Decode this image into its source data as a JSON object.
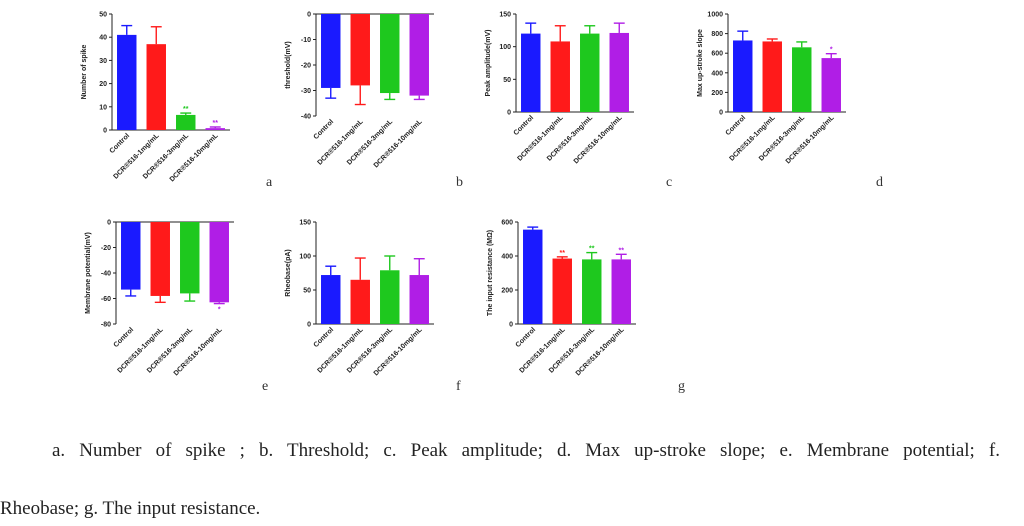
{
  "colors": {
    "control": "#1a1aff",
    "low": "#ff1a1a",
    "mid": "#1ec81e",
    "high": "#b01ee6",
    "axis": "#222222"
  },
  "chart_data": [
    {
      "type": "bar",
      "label": "a",
      "ylabel": "Number of spike",
      "ylim": [
        0,
        50
      ],
      "yticks": [
        0,
        10,
        20,
        30,
        40,
        50
      ],
      "categories": [
        "Control",
        "DCR®516-1mg/mL",
        "DCR®516-3mg/mL",
        "DCR®516-10mg/mL"
      ],
      "values": [
        41,
        37,
        6.5,
        0.8
      ],
      "errors": [
        4,
        7.5,
        0.8,
        0.5
      ],
      "significance": [
        "",
        "",
        "**",
        "**"
      ]
    },
    {
      "type": "bar",
      "label": "b",
      "ylabel": "threshold(mV)",
      "ylim": [
        -40,
        0
      ],
      "yticks": [
        0,
        -10,
        -20,
        -30,
        -40
      ],
      "categories": [
        "Control",
        "DCR®516-1mg/mL",
        "DCR®516-3mg/mL",
        "DCR®516-10mg/mL"
      ],
      "values": [
        -29,
        -28,
        -31,
        -32
      ],
      "errors": [
        4,
        7.5,
        2.5,
        1.5
      ],
      "significance": [
        "",
        "",
        "",
        ""
      ]
    },
    {
      "type": "bar",
      "label": "c",
      "ylabel": "Peak amplitude(mV)",
      "ylim": [
        0,
        150
      ],
      "yticks": [
        0,
        50,
        100,
        150
      ],
      "categories": [
        "Control",
        "DCR®516-1mg/mL",
        "DCR®516-3mg/mL",
        "DCR®516-10mg/mL"
      ],
      "values": [
        120,
        108,
        120,
        121
      ],
      "errors": [
        16,
        24,
        12,
        15
      ],
      "significance": [
        "",
        "",
        "",
        ""
      ]
    },
    {
      "type": "bar",
      "label": "d",
      "ylabel": "Max up-stroke slope",
      "ylim": [
        0,
        1000
      ],
      "yticks": [
        0,
        200,
        400,
        600,
        800,
        1000
      ],
      "categories": [
        "Control",
        "DCR®516-1mg/mL",
        "DCR®516-3mg/mL",
        "DCR®516-10mg/mL"
      ],
      "values": [
        730,
        720,
        660,
        550
      ],
      "errors": [
        95,
        25,
        55,
        45
      ],
      "significance": [
        "",
        "",
        "",
        "*"
      ]
    },
    {
      "type": "bar",
      "label": "e",
      "ylabel": "Membrane potential(mV)",
      "ylim": [
        -80,
        0
      ],
      "yticks": [
        0,
        -20,
        -40,
        -60,
        -80
      ],
      "categories": [
        "Control",
        "DCR®516-1mg/mL",
        "DCR®516-3mg/mL",
        "DCR®516-10mg/mL"
      ],
      "values": [
        -53,
        -58,
        -56,
        -63
      ],
      "errors": [
        5,
        5,
        6,
        1
      ],
      "significance": [
        "",
        "",
        "",
        "*"
      ]
    },
    {
      "type": "bar",
      "label": "f",
      "ylabel": "Rheobase(pA)",
      "ylim": [
        0,
        150
      ],
      "yticks": [
        0,
        50,
        100,
        150
      ],
      "categories": [
        "Control",
        "DCR®516-1mg/mL",
        "DCR®516-3mg/mL",
        "DCR®516-10mg/mL"
      ],
      "values": [
        72,
        65,
        79,
        72
      ],
      "errors": [
        13,
        32,
        21,
        24
      ],
      "significance": [
        "",
        "",
        "",
        ""
      ]
    },
    {
      "type": "bar",
      "label": "g",
      "ylabel": "The input resistance (MΩ)",
      "ylim": [
        0,
        600
      ],
      "yticks": [
        0,
        200,
        400,
        600
      ],
      "categories": [
        "Control",
        "DCR®516-1mg/mL",
        "DCR®516-3mg/mL",
        "DCR®516-10mg/mL"
      ],
      "values": [
        555,
        385,
        380,
        380
      ],
      "errors": [
        15,
        10,
        40,
        30
      ],
      "significance": [
        "",
        "**",
        "**",
        "**"
      ]
    }
  ],
  "caption": {
    "line1": "a. Number of spike ; b. Threshold; c. Peak amplitude; d. Max up-stroke slope; e. Membrane potential; f.",
    "line2": "Rheobase; g. The input resistance."
  }
}
